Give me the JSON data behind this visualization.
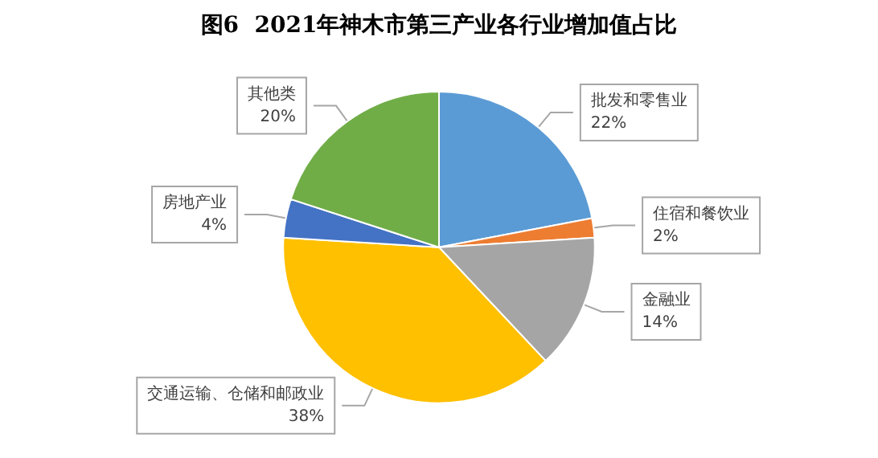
{
  "chart_data": {
    "type": "pie",
    "title": "图6  2021年神木市第三产业各行业增加值占比",
    "categories": [
      "批发和零售业",
      "住宿和餐饮业",
      "金融业",
      "交通运输、仓储和邮政业",
      "房地产业",
      "其他类"
    ],
    "values": [
      22,
      2,
      14,
      38,
      4,
      20
    ],
    "value_labels": [
      "22%",
      "2%",
      "14%",
      "38%",
      "4%",
      "20%"
    ],
    "colors": [
      "#5b9bd5",
      "#ed7d31",
      "#a5a5a5",
      "#ffc000",
      "#4472c4",
      "#70ad47"
    ],
    "legend": false
  }
}
